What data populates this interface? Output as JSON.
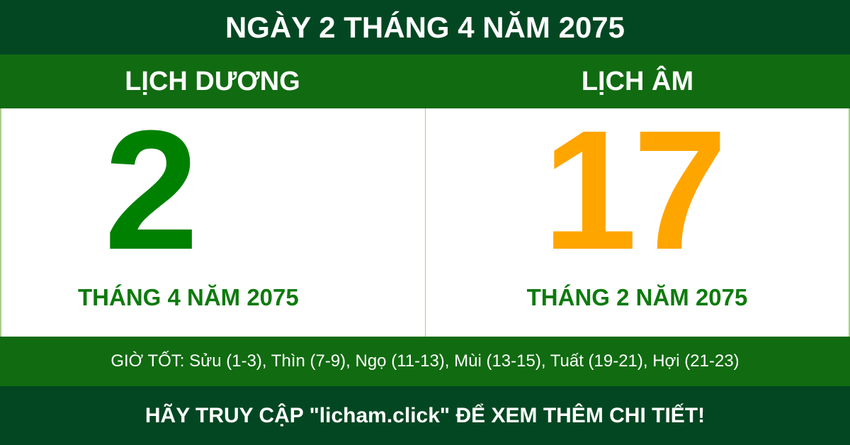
{
  "title": "NGÀY 2 THÁNG 4 NĂM 2075",
  "solar": {
    "heading": "LỊCH DƯƠNG",
    "day": "2",
    "month_year": "THÁNG 4 NĂM 2075"
  },
  "lunar": {
    "heading": "LỊCH ÂM",
    "day": "17",
    "month_year": "THÁNG 2 NĂM 2075"
  },
  "good_hours": "GIỜ TỐT: Sửu (1-3), Thìn (7-9), Ngọ (11-13), Mùi (13-15), Tuất (19-21), Hợi (21-23)",
  "footer": "HÃY TRUY CẬP \"licham.click\" ĐỂ XEM THÊM CHI TIẾT!",
  "colors": {
    "dark_green": "#034722",
    "band_green": "#116b11",
    "solar_day": "#008000",
    "lunar_day": "#ffa500"
  }
}
